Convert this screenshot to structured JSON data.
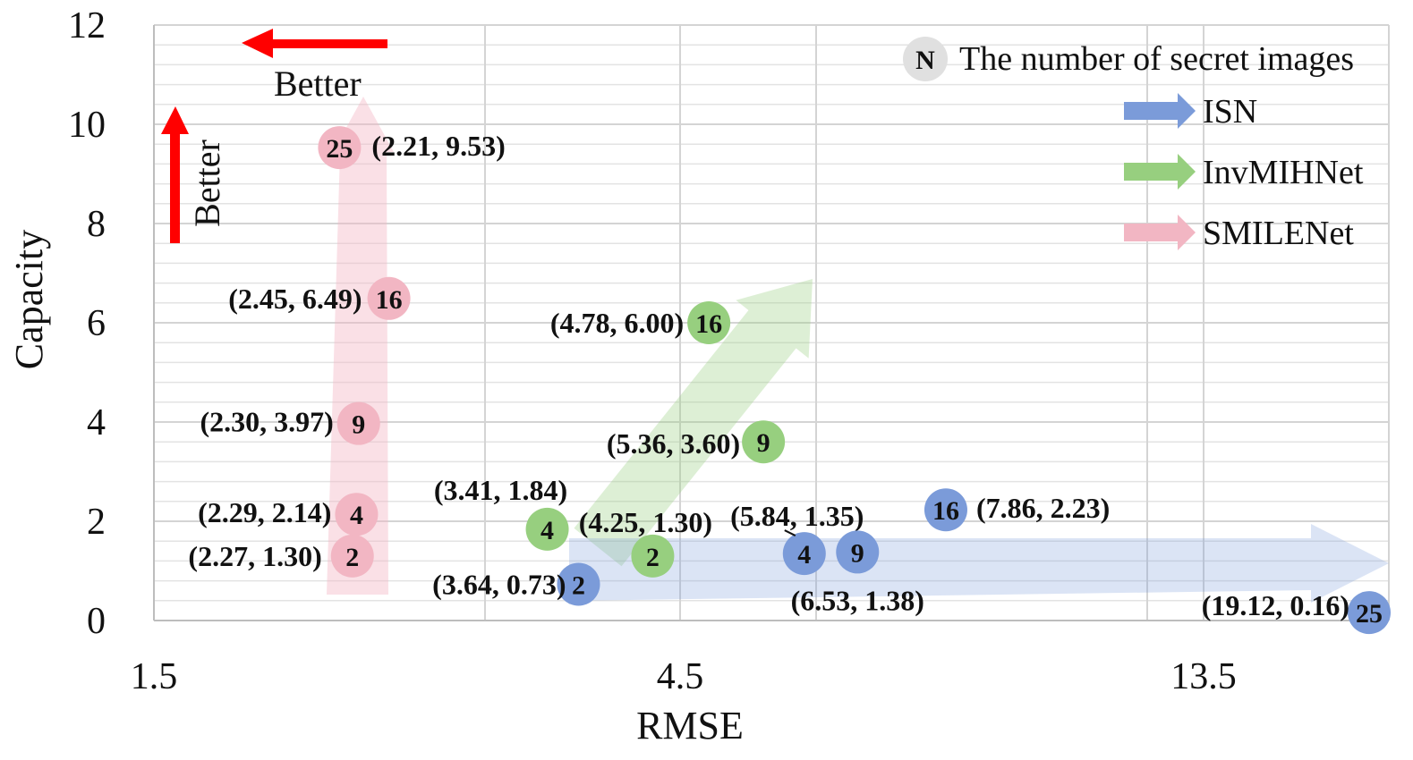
{
  "chart_data": {
    "type": "scatter",
    "xlabel": "RMSE",
    "ylabel": "Capacity",
    "x_ticks": [
      "1.5",
      "4.5",
      "13.5"
    ],
    "y_ticks": [
      "0",
      "2",
      "4",
      "6",
      "8",
      "10",
      "12"
    ],
    "ylim": [
      0,
      12
    ],
    "grid": true,
    "legend_position": "top-right",
    "legend_note": "The number of secret images",
    "legend_note_symbol": "N",
    "annotations": {
      "better_x": "Better",
      "better_y": "Better"
    },
    "series": [
      {
        "name": "ISN",
        "color": "#7b9bd9",
        "points": [
          {
            "n": "2",
            "x": 3.64,
            "y": 0.73,
            "label": "(3.64, 0.73)"
          },
          {
            "n": "4",
            "x": 5.84,
            "y": 1.35,
            "label": "(5.84, 1.35)"
          },
          {
            "n": "9",
            "x": 6.53,
            "y": 1.38,
            "label": "(6.53, 1.38)"
          },
          {
            "n": "16",
            "x": 7.86,
            "y": 2.23,
            "label": "(7.86, 2.23)"
          },
          {
            "n": "25",
            "x": 19.12,
            "y": 0.16,
            "label": "(19.12, 0.16)"
          }
        ]
      },
      {
        "name": "InvMIHNet",
        "color": "#97cf7f",
        "points": [
          {
            "n": "2",
            "x": 4.25,
            "y": 1.3,
            "label": "(4.25, 1.30)"
          },
          {
            "n": "4",
            "x": 3.41,
            "y": 1.84,
            "label": "(3.41, 1.84)"
          },
          {
            "n": "9",
            "x": 5.36,
            "y": 3.6,
            "label": "(5.36, 3.60)"
          },
          {
            "n": "16",
            "x": 4.78,
            "y": 6.0,
            "label": "(4.78, 6.00)"
          }
        ]
      },
      {
        "name": "SMILENet",
        "color": "#f2b6c3",
        "points": [
          {
            "n": "2",
            "x": 2.27,
            "y": 1.3,
            "label": "(2.27, 1.30)"
          },
          {
            "n": "4",
            "x": 2.29,
            "y": 2.14,
            "label": "(2.29, 2.14)"
          },
          {
            "n": "9",
            "x": 2.3,
            "y": 3.97,
            "label": "(2.30, 3.97)"
          },
          {
            "n": "16",
            "x": 2.45,
            "y": 6.49,
            "label": "(2.45, 6.49)"
          },
          {
            "n": "25",
            "x": 2.21,
            "y": 9.53,
            "label": "(2.21, 9.53)"
          }
        ]
      }
    ]
  }
}
